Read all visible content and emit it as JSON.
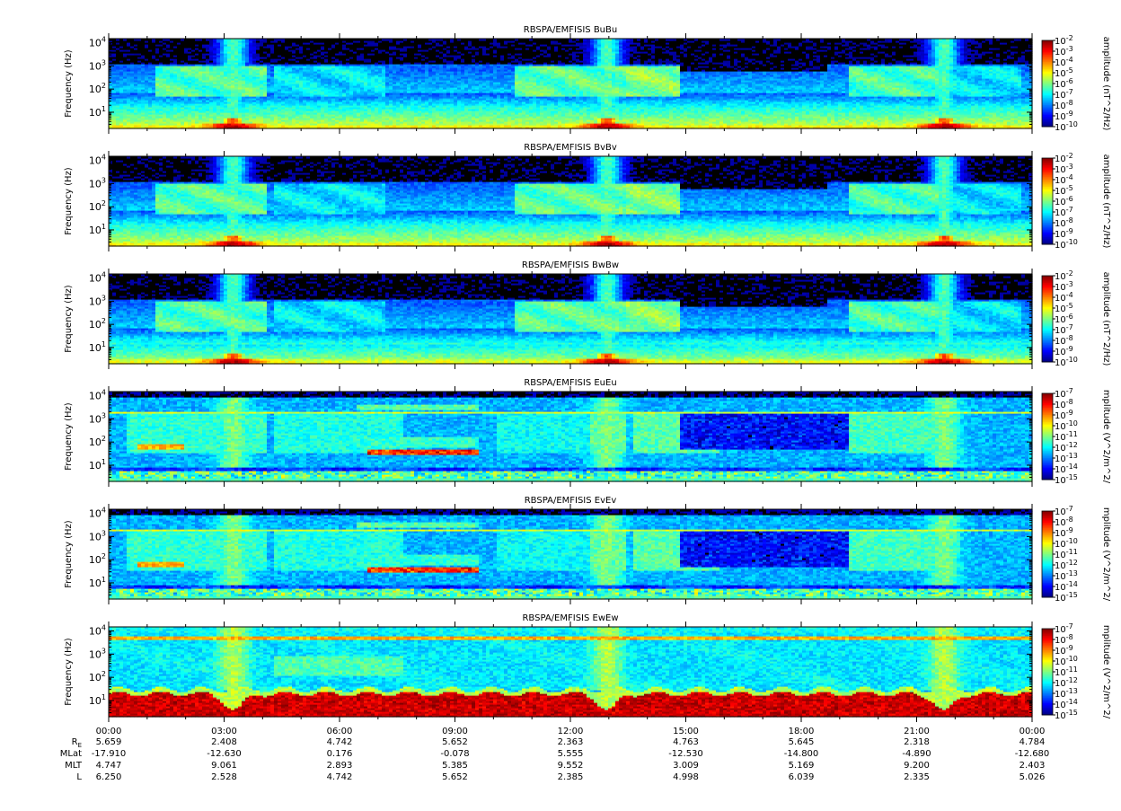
{
  "chart_data": {
    "type": "heatmap",
    "x_ticks": [
      "00:00",
      "03:00",
      "06:00",
      "09:00",
      "12:00",
      "15:00",
      "18:00",
      "21:00",
      "00:00"
    ],
    "xlim_hours": [
      0,
      24
    ],
    "y_scale": "log",
    "ylim": [
      2,
      15000
    ],
    "y_ticks": [
      {
        "value": 10,
        "exp": "1"
      },
      {
        "value": 100,
        "exp": "2"
      },
      {
        "value": 1000,
        "exp": "3"
      },
      {
        "value": 10000,
        "exp": "4"
      }
    ],
    "ylabel": "Frequency (Hz)",
    "panels": [
      {
        "title": "RBSPA/EMFISIS  BuBu",
        "zlabel": "amplitude (nT^2/Hz)",
        "zlim_exp": [
          -10,
          -2
        ],
        "component": "B",
        "style": "b1"
      },
      {
        "title": "RBSPA/EMFISIS  BvBv",
        "zlabel": "amplitude (nT^2/Hz)",
        "zlim_exp": [
          -10,
          -2
        ],
        "component": "B",
        "style": "b2"
      },
      {
        "title": "RBSPA/EMFISIS  BwBw",
        "zlabel": "amplitude (nT^2/Hz)",
        "zlim_exp": [
          -10,
          -2
        ],
        "component": "B",
        "style": "b3"
      },
      {
        "title": "RBSPA/EMFISIS  EuEu",
        "zlabel": "mplitude (V^2/m^2/",
        "zlim_exp": [
          -15,
          -7
        ],
        "component": "E",
        "style": "e1"
      },
      {
        "title": "RBSPA/EMFISIS  EvEv",
        "zlabel": "mplitude (V^2/m^2/",
        "zlim_exp": [
          -15,
          -7
        ],
        "component": "E",
        "style": "e2"
      },
      {
        "title": "RBSPA/EMFISIS  EwEw",
        "zlabel": "mplitude (V^2/m^2/",
        "zlim_exp": [
          -15,
          -7
        ],
        "component": "E",
        "style": "e3"
      }
    ],
    "ephemeris": [
      {
        "label": "RE",
        "values": [
          "5.659",
          "2.408",
          "4.742",
          "5.652",
          "2.363",
          "4.763",
          "5.645",
          "2.318",
          "4.784"
        ]
      },
      {
        "label": "MLat",
        "values": [
          "-17.910",
          "-12.630",
          "0.176",
          "-0.078",
          "5.555",
          "-12.530",
          "-14.800",
          "-4.890",
          "-12.680"
        ]
      },
      {
        "label": "MLT",
        "values": [
          "4.747",
          "9.061",
          "2.893",
          "5.385",
          "9.552",
          "3.009",
          "5.169",
          "9.200",
          "2.403"
        ]
      },
      {
        "label": "L",
        "values": [
          "6.250",
          "2.528",
          "4.742",
          "5.652",
          "2.385",
          "4.998",
          "6.039",
          "2.335",
          "5.026"
        ]
      }
    ]
  }
}
